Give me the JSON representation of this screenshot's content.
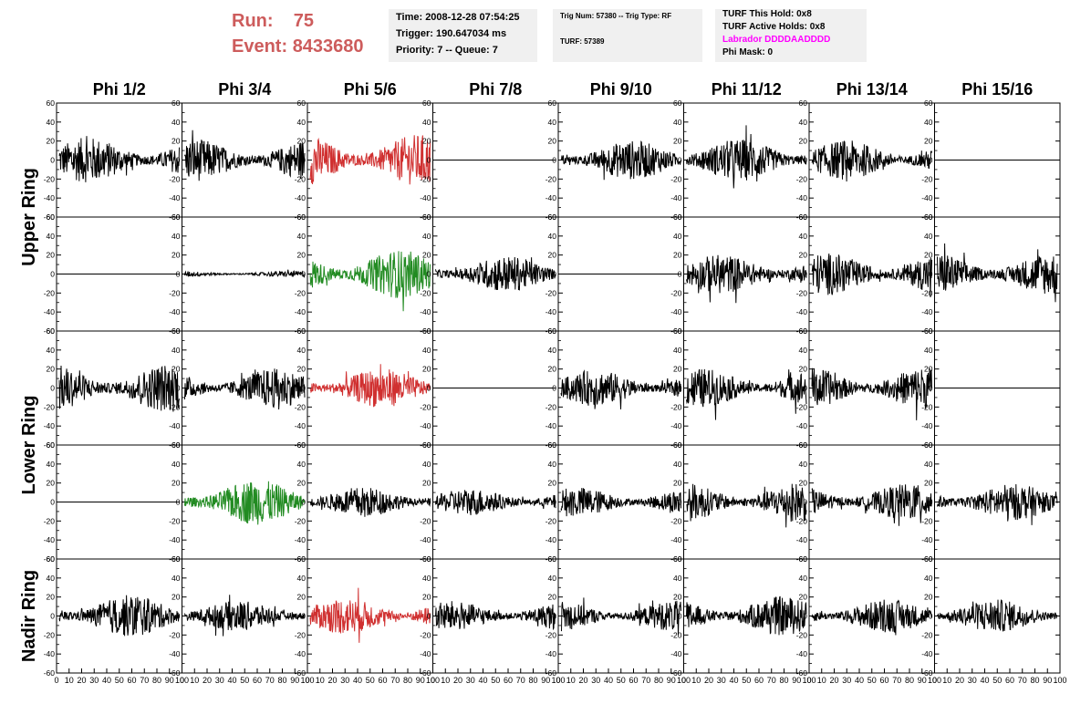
{
  "header": {
    "run_label": "Run:",
    "run_value": "75",
    "event_label": "Event:",
    "event_value": "8433680",
    "time": "Time: 2008-12-28 07:54:25",
    "trigger": "Trigger: 190.647034 ms",
    "priority": "Priority: 7 -- Queue: 7",
    "trig_num": "Trig Num: 57380 -- Trig Type: RF",
    "turf": "TURF: 57389",
    "turf_this_hold": "TURF This Hold: 0x8",
    "turf_active_holds": "TURF Active Holds: 0x8",
    "labrador": "Labrador DDDDAADDDD",
    "phi_mask": "Phi Mask: 0"
  },
  "colors": {
    "header_red": "#cd5c5c",
    "labrador_magenta": "#ff00ff",
    "trace_black": "#000000",
    "trace_red": "#d03030",
    "trace_green": "#228b22",
    "infobox_bg": "#f0f0f0"
  },
  "chart_data": {
    "type": "line",
    "description_grid": "5 rows x 8 columns of waveform panels",
    "columns": [
      "Phi 1/2",
      "Phi 3/4",
      "Phi 5/6",
      "Phi 7/8",
      "Phi 9/10",
      "Phi 11/12",
      "Phi 13/14",
      "Phi 15/16"
    ],
    "ring_labels": [
      "Upper Ring",
      "Lower Ring",
      "Nadir Ring"
    ],
    "row_ring_index": [
      0,
      0,
      1,
      1,
      2
    ],
    "ylim": [
      -60,
      60
    ],
    "yticks": [
      -60,
      -40,
      -20,
      0,
      20,
      40,
      60
    ],
    "xlim": [
      0,
      100
    ],
    "xticks": [
      0,
      10,
      20,
      30,
      40,
      50,
      60,
      70,
      80,
      90,
      100
    ],
    "samples": 260,
    "panels": [
      [
        "sig",
        "sig",
        "sig-red",
        "flat",
        "sig",
        "sig",
        "sig",
        "flat"
      ],
      [
        "flat",
        "small",
        "sig-green",
        "sig",
        "flat",
        "sig",
        "sig",
        "sig"
      ],
      [
        "sig",
        "sig",
        "sig-red",
        "flat",
        "sig",
        "sig",
        "sig",
        "flat"
      ],
      [
        "flat",
        "sig-green",
        "sig",
        "sig",
        "sig",
        "sig",
        "sig",
        "sig"
      ],
      [
        "sig",
        "sig",
        "sig-red",
        "sig",
        "sig",
        "sig",
        "sig",
        "sig"
      ]
    ],
    "amplitudes": [
      [
        15,
        14,
        17,
        0,
        13,
        14,
        13,
        0
      ],
      [
        0,
        2,
        16,
        12,
        0,
        13,
        14,
        14
      ],
      [
        16,
        13,
        13,
        0,
        12,
        13,
        14,
        0
      ],
      [
        0,
        15,
        10,
        9,
        10,
        13,
        12,
        12
      ],
      [
        14,
        10,
        12,
        10,
        10,
        13,
        11,
        11
      ]
    ]
  }
}
